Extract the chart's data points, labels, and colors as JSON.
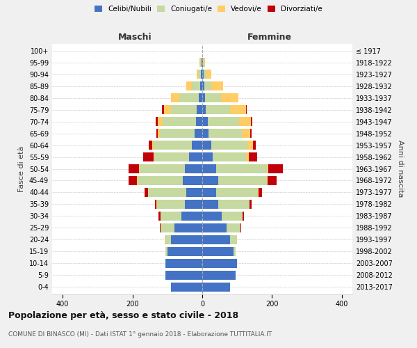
{
  "age_groups": [
    "0-4",
    "5-9",
    "10-14",
    "15-19",
    "20-24",
    "25-29",
    "30-34",
    "35-39",
    "40-44",
    "45-49",
    "50-54",
    "55-59",
    "60-64",
    "65-69",
    "70-74",
    "75-79",
    "80-84",
    "85-89",
    "90-94",
    "95-99",
    "100+"
  ],
  "birth_years": [
    "2013-2017",
    "2008-2012",
    "2003-2007",
    "1998-2002",
    "1993-1997",
    "1988-1992",
    "1983-1987",
    "1978-1982",
    "1973-1977",
    "1968-1972",
    "1963-1967",
    "1958-1962",
    "1953-1957",
    "1948-1952",
    "1943-1947",
    "1938-1942",
    "1933-1937",
    "1928-1932",
    "1923-1927",
    "1918-1922",
    "≤ 1917"
  ],
  "male": {
    "celibi": [
      90,
      105,
      105,
      100,
      90,
      80,
      60,
      50,
      45,
      55,
      50,
      38,
      30,
      22,
      18,
      15,
      10,
      5,
      3,
      2,
      0
    ],
    "coniugati": [
      0,
      0,
      0,
      5,
      15,
      40,
      60,
      80,
      110,
      130,
      130,
      100,
      110,
      100,
      95,
      75,
      55,
      25,
      8,
      3,
      0
    ],
    "vedovi": [
      0,
      0,
      0,
      0,
      2,
      0,
      0,
      1,
      1,
      2,
      2,
      2,
      3,
      5,
      15,
      20,
      25,
      15,
      5,
      2,
      0
    ],
    "divorziati": [
      0,
      0,
      0,
      0,
      0,
      2,
      5,
      5,
      10,
      25,
      30,
      30,
      10,
      5,
      5,
      5,
      0,
      0,
      0,
      0,
      0
    ]
  },
  "female": {
    "nubili": [
      80,
      95,
      100,
      90,
      80,
      70,
      55,
      45,
      40,
      45,
      40,
      30,
      25,
      18,
      15,
      10,
      8,
      5,
      3,
      2,
      0
    ],
    "coniugate": [
      0,
      0,
      0,
      5,
      20,
      40,
      60,
      90,
      120,
      140,
      145,
      95,
      105,
      95,
      90,
      70,
      45,
      20,
      8,
      2,
      0
    ],
    "vedove": [
      0,
      0,
      0,
      0,
      0,
      0,
      0,
      1,
      2,
      3,
      5,
      8,
      15,
      25,
      35,
      45,
      50,
      35,
      15,
      3,
      0
    ],
    "divorziate": [
      0,
      0,
      0,
      0,
      0,
      2,
      5,
      5,
      10,
      25,
      40,
      25,
      8,
      3,
      3,
      3,
      0,
      0,
      0,
      0,
      0
    ]
  },
  "colors": {
    "celibi_nubili": "#4472C4",
    "coniugati": "#C5D9A0",
    "vedovi": "#FFCC66",
    "divorziati": "#C0000B"
  },
  "xlim": 430,
  "xticks": [
    -400,
    -200,
    0,
    200,
    400
  ],
  "title": "Popolazione per età, sesso e stato civile - 2018",
  "subtitle": "COMUNE DI BINASCO (MI) - Dati ISTAT 1° gennaio 2018 - Elaborazione TUTTITALIA.IT",
  "ylabel": "Fasce di età",
  "ylabel_right": "Anni di nascita",
  "label_maschi": "Maschi",
  "label_femmine": "Femmine",
  "bg_color": "#f0f0f0",
  "plot_bg": "#ffffff",
  "legend": [
    "Celibi/Nubili",
    "Coniugati/e",
    "Vedovi/e",
    "Divorziati/e"
  ]
}
